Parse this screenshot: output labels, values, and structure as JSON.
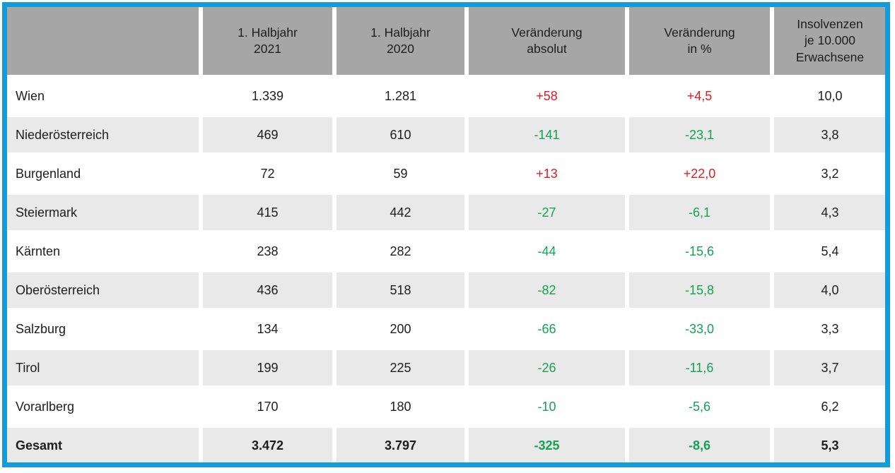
{
  "colors": {
    "frame_blue": "#149cd8",
    "header_gray": "#a6a6a6",
    "stripe_gray": "#e9e9e9",
    "positive_red": "#e01b24",
    "negative_green": "#14a254",
    "text": "#1d1d1d"
  },
  "table": {
    "columns": [
      {
        "id": "region",
        "lines": []
      },
      {
        "id": "h1_2021",
        "lines": [
          "1. Halbjahr",
          "2021"
        ]
      },
      {
        "id": "h1_2020",
        "lines": [
          "1. Halbjahr",
          "2020"
        ]
      },
      {
        "id": "change_abs",
        "lines": [
          "Veränderung",
          "absolut"
        ]
      },
      {
        "id": "change_pct",
        "lines": [
          "Veränderung",
          "in %"
        ]
      },
      {
        "id": "per_10000",
        "lines": [
          "Insolvenzen",
          "je 10.000",
          "Erwachsene"
        ]
      }
    ],
    "rows": [
      {
        "region": "Wien",
        "h1_2021": "1.339",
        "h1_2020": "1.281",
        "change_abs": "+58",
        "change_pct": "+4,5",
        "per_10000": "10,0",
        "bold": false
      },
      {
        "region": "Niederösterreich",
        "h1_2021": "469",
        "h1_2020": "610",
        "change_abs": "-141",
        "change_pct": "-23,1",
        "per_10000": "3,8",
        "bold": false
      },
      {
        "region": "Burgenland",
        "h1_2021": "72",
        "h1_2020": "59",
        "change_abs": "+13",
        "change_pct": "+22,0",
        "per_10000": "3,2",
        "bold": false
      },
      {
        "region": "Steiermark",
        "h1_2021": "415",
        "h1_2020": "442",
        "change_abs": "-27",
        "change_pct": "-6,1",
        "per_10000": "4,3",
        "bold": false
      },
      {
        "region": "Kärnten",
        "h1_2021": "238",
        "h1_2020": "282",
        "change_abs": "-44",
        "change_pct": "-15,6",
        "per_10000": "5,4",
        "bold": false
      },
      {
        "region": "Oberösterreich",
        "h1_2021": "436",
        "h1_2020": "518",
        "change_abs": "-82",
        "change_pct": "-15,8",
        "per_10000": "4,0",
        "bold": false
      },
      {
        "region": "Salzburg",
        "h1_2021": "134",
        "h1_2020": "200",
        "change_abs": "-66",
        "change_pct": "-33,0",
        "per_10000": "3,3",
        "bold": false
      },
      {
        "region": "Tirol",
        "h1_2021": "199",
        "h1_2020": "225",
        "change_abs": "-26",
        "change_pct": "-11,6",
        "per_10000": "3,7",
        "bold": false
      },
      {
        "region": "Vorarlberg",
        "h1_2021": "170",
        "h1_2020": "180",
        "change_abs": "-10",
        "change_pct": "-5,6",
        "per_10000": "6,2",
        "bold": false
      },
      {
        "region": "Gesamt",
        "h1_2021": "3.472",
        "h1_2020": "3.797",
        "change_abs": "-325",
        "change_pct": "-8,6",
        "per_10000": "5,3",
        "bold": true
      }
    ]
  },
  "chart_data": {
    "type": "table",
    "columns": [
      "",
      "1. Halbjahr 2021",
      "1. Halbjahr 2020",
      "Veränderung absolut",
      "Veränderung in %",
      "Insolvenzen je 10.000 Erwachsene"
    ],
    "rows": [
      [
        "Wien",
        1339,
        1281,
        58,
        4.5,
        10.0
      ],
      [
        "Niederösterreich",
        469,
        610,
        -141,
        -23.1,
        3.8
      ],
      [
        "Burgenland",
        72,
        59,
        13,
        22.0,
        3.2
      ],
      [
        "Steiermark",
        415,
        442,
        -27,
        -6.1,
        4.3
      ],
      [
        "Kärnten",
        238,
        282,
        -44,
        -15.6,
        5.4
      ],
      [
        "Oberösterreich",
        436,
        518,
        -82,
        -15.8,
        4.0
      ],
      [
        "Salzburg",
        134,
        200,
        -66,
        -33.0,
        3.3
      ],
      [
        "Tirol",
        199,
        225,
        -26,
        -11.6,
        3.7
      ],
      [
        "Vorarlberg",
        170,
        180,
        -10,
        -5.6,
        6.2
      ],
      [
        "Gesamt",
        3472,
        3797,
        -325,
        -8.6,
        5.3
      ]
    ],
    "notes": "positive changes shown in red, negative changes shown in green, last row is bold total row, alternating light-gray row stripes"
  }
}
